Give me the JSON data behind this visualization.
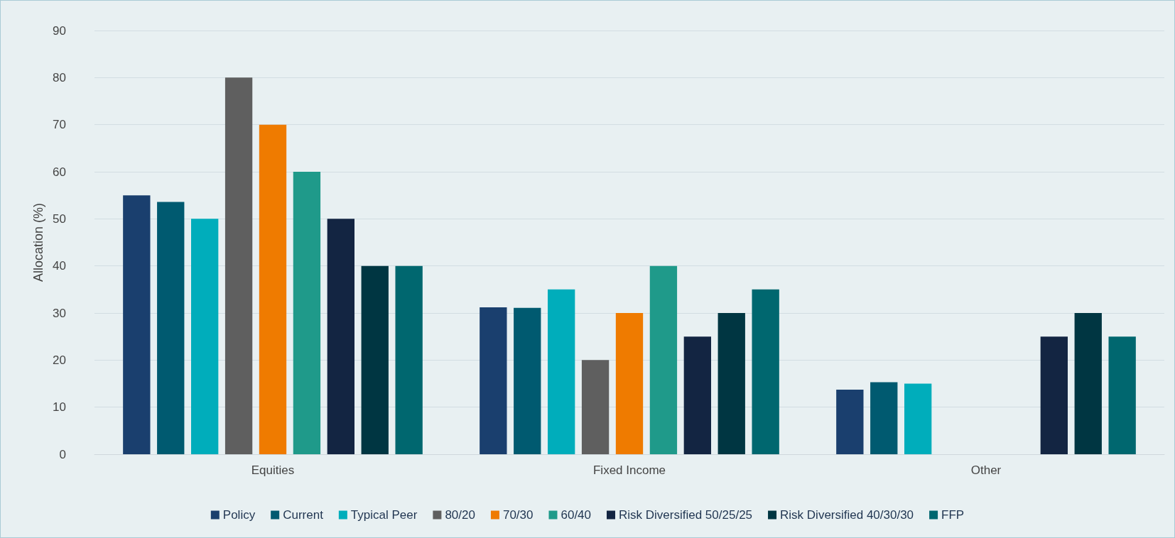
{
  "chart_data": {
    "type": "bar",
    "ylabel": "Allocation (%)",
    "categories": [
      "Equities",
      "Fixed Income",
      "Other"
    ],
    "series": [
      {
        "name": "Policy",
        "color": "#1a3f6e",
        "values": [
          55,
          31.2,
          13.7
        ]
      },
      {
        "name": "Current",
        "color": "#005a70",
        "values": [
          53.6,
          31.1,
          15.3
        ]
      },
      {
        "name": "Typical Peer",
        "color": "#00adbb",
        "values": [
          50,
          35,
          15
        ]
      },
      {
        "name": "80/20",
        "color": "#5f5f5f",
        "values": [
          80,
          20,
          null
        ]
      },
      {
        "name": "70/30",
        "color": "#ef7b00",
        "values": [
          70,
          30,
          null
        ]
      },
      {
        "name": "60/40",
        "color": "#1f9a8a",
        "values": [
          60,
          40,
          null
        ]
      },
      {
        "name": "Risk Diversified 50/25/25",
        "color": "#132542",
        "values": [
          50,
          25,
          25
        ]
      },
      {
        "name": "Risk Diversified 40/30/30",
        "color": "#003642",
        "values": [
          40,
          30,
          30
        ]
      },
      {
        "name": "FFP",
        "color": "#00676f",
        "values": [
          40,
          35,
          25
        ]
      }
    ],
    "ylim": [
      0,
      90
    ],
    "yticks": [
      0,
      10,
      20,
      30,
      40,
      50,
      60,
      70,
      80,
      90
    ],
    "grid": "y",
    "legend": "bottom"
  }
}
